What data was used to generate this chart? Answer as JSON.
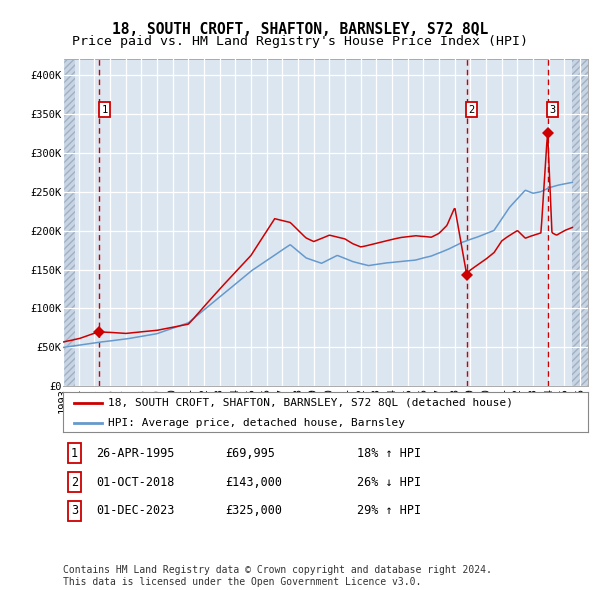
{
  "title": "18, SOUTH CROFT, SHAFTON, BARNSLEY, S72 8QL",
  "subtitle": "Price paid vs. HM Land Registry's House Price Index (HPI)",
  "xlim_start": 1993.0,
  "xlim_end": 2026.5,
  "ylim_min": 0,
  "ylim_max": 420000,
  "yticks": [
    0,
    50000,
    100000,
    150000,
    200000,
    250000,
    300000,
    350000,
    400000
  ],
  "ytick_labels": [
    "£0",
    "£50K",
    "£100K",
    "£150K",
    "£200K",
    "£250K",
    "£300K",
    "£350K",
    "£400K"
  ],
  "sales": [
    {
      "label": "1",
      "date_decimal": 1995.32,
      "price": 69995
    },
    {
      "label": "2",
      "date_decimal": 2018.75,
      "price": 143000
    },
    {
      "label": "3",
      "date_decimal": 2023.92,
      "price": 325000
    }
  ],
  "hpi_color": "#6699cc",
  "property_color": "#cc0000",
  "background_color": "#dce6f1",
  "grid_color": "#ffffff",
  "dashed_line_color": "#cc0000",
  "hatch_left_end": 1993.75,
  "hatch_right_start": 2025.5,
  "legend_label_property": "18, SOUTH CROFT, SHAFTON, BARNSLEY, S72 8QL (detached house)",
  "legend_label_hpi": "HPI: Average price, detached house, Barnsley",
  "table_rows": [
    {
      "num": "1",
      "date": "26-APR-1995",
      "price": "£69,995",
      "hpi": "18% ↑ HPI"
    },
    {
      "num": "2",
      "date": "01-OCT-2018",
      "price": "£143,000",
      "hpi": "26% ↓ HPI"
    },
    {
      "num": "3",
      "date": "01-DEC-2023",
      "price": "£325,000",
      "hpi": "29% ↑ HPI"
    }
  ],
  "footer": "Contains HM Land Registry data © Crown copyright and database right 2024.\nThis data is licensed under the Open Government Licence v3.0.",
  "title_fontsize": 10.5,
  "subtitle_fontsize": 9.5,
  "tick_fontsize": 7.5,
  "legend_fontsize": 8,
  "table_fontsize": 8.5,
  "footer_fontsize": 7
}
